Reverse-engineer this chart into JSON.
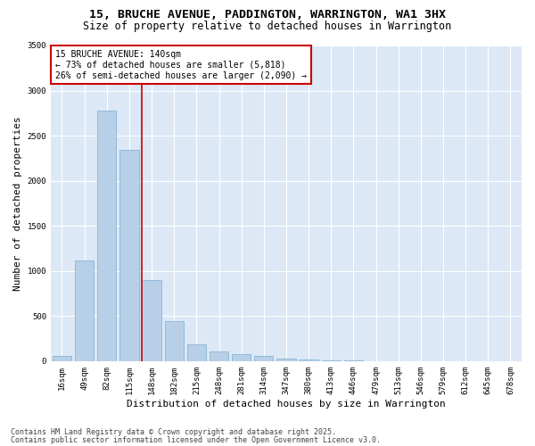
{
  "title_line1": "15, BRUCHE AVENUE, PADDINGTON, WARRINGTON, WA1 3HX",
  "title_line2": "Size of property relative to detached houses in Warrington",
  "xlabel": "Distribution of detached houses by size in Warrington",
  "ylabel": "Number of detached properties",
  "bar_color": "#b8cfe8",
  "bar_edge_color": "#7aaed4",
  "categories": [
    "16sqm",
    "49sqm",
    "82sqm",
    "115sqm",
    "148sqm",
    "182sqm",
    "215sqm",
    "248sqm",
    "281sqm",
    "314sqm",
    "347sqm",
    "380sqm",
    "413sqm",
    "446sqm",
    "479sqm",
    "513sqm",
    "546sqm",
    "579sqm",
    "612sqm",
    "645sqm",
    "678sqm"
  ],
  "values": [
    55,
    1120,
    2780,
    2340,
    900,
    440,
    185,
    110,
    75,
    55,
    30,
    20,
    10,
    5,
    3,
    2,
    1,
    1,
    0,
    0,
    0
  ],
  "ylim": [
    0,
    3500
  ],
  "yticks": [
    0,
    500,
    1000,
    1500,
    2000,
    2500,
    3000,
    3500
  ],
  "annotation_title": "15 BRUCHE AVENUE: 140sqm",
  "annotation_line2": "← 73% of detached houses are smaller (5,818)",
  "annotation_line3": "26% of semi-detached houses are larger (2,090) →",
  "annotation_box_color": "#ffffff",
  "annotation_border_color": "#cc0000",
  "red_line_color": "#cc0000",
  "bg_color": "#dce8f5",
  "fig_bg_color": "#ffffff",
  "footnote1": "Contains HM Land Registry data © Crown copyright and database right 2025.",
  "footnote2": "Contains public sector information licensed under the Open Government Licence v3.0.",
  "grid_color": "#ffffff",
  "title_fontsize": 9.5,
  "subtitle_fontsize": 8.5,
  "axis_label_fontsize": 8,
  "tick_fontsize": 6.5,
  "annotation_fontsize": 7,
  "footnote_fontsize": 6
}
